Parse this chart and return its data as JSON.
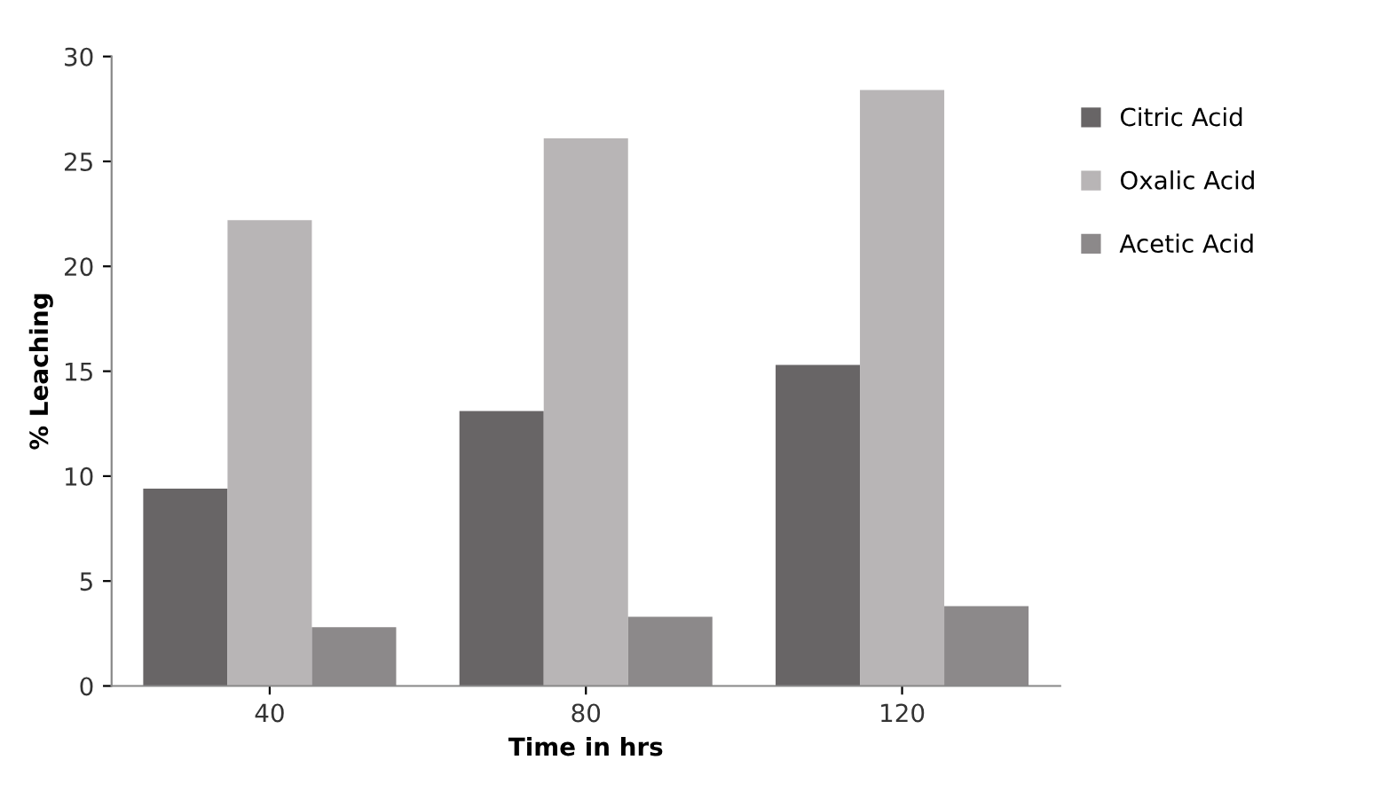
{
  "chart_data": {
    "type": "bar",
    "xlabel": "Time in hrs",
    "ylabel": "% Leaching",
    "categories": [
      "40",
      "80",
      "120"
    ],
    "series": [
      {
        "name": "Citric Acid",
        "color": "#686566",
        "values": [
          9.4,
          13.1,
          15.3
        ]
      },
      {
        "name": "Oxalic Acid",
        "color": "#b8b5b6",
        "values": [
          22.2,
          26.1,
          28.4
        ]
      },
      {
        "name": "Acetic Acid",
        "color": "#8c898a",
        "values": [
          2.8,
          3.3,
          3.8
        ]
      }
    ],
    "ylim": [
      0,
      30
    ],
    "yticks": [
      0,
      5,
      10,
      15,
      20,
      25,
      30
    ],
    "grid": false,
    "legend": "right"
  }
}
